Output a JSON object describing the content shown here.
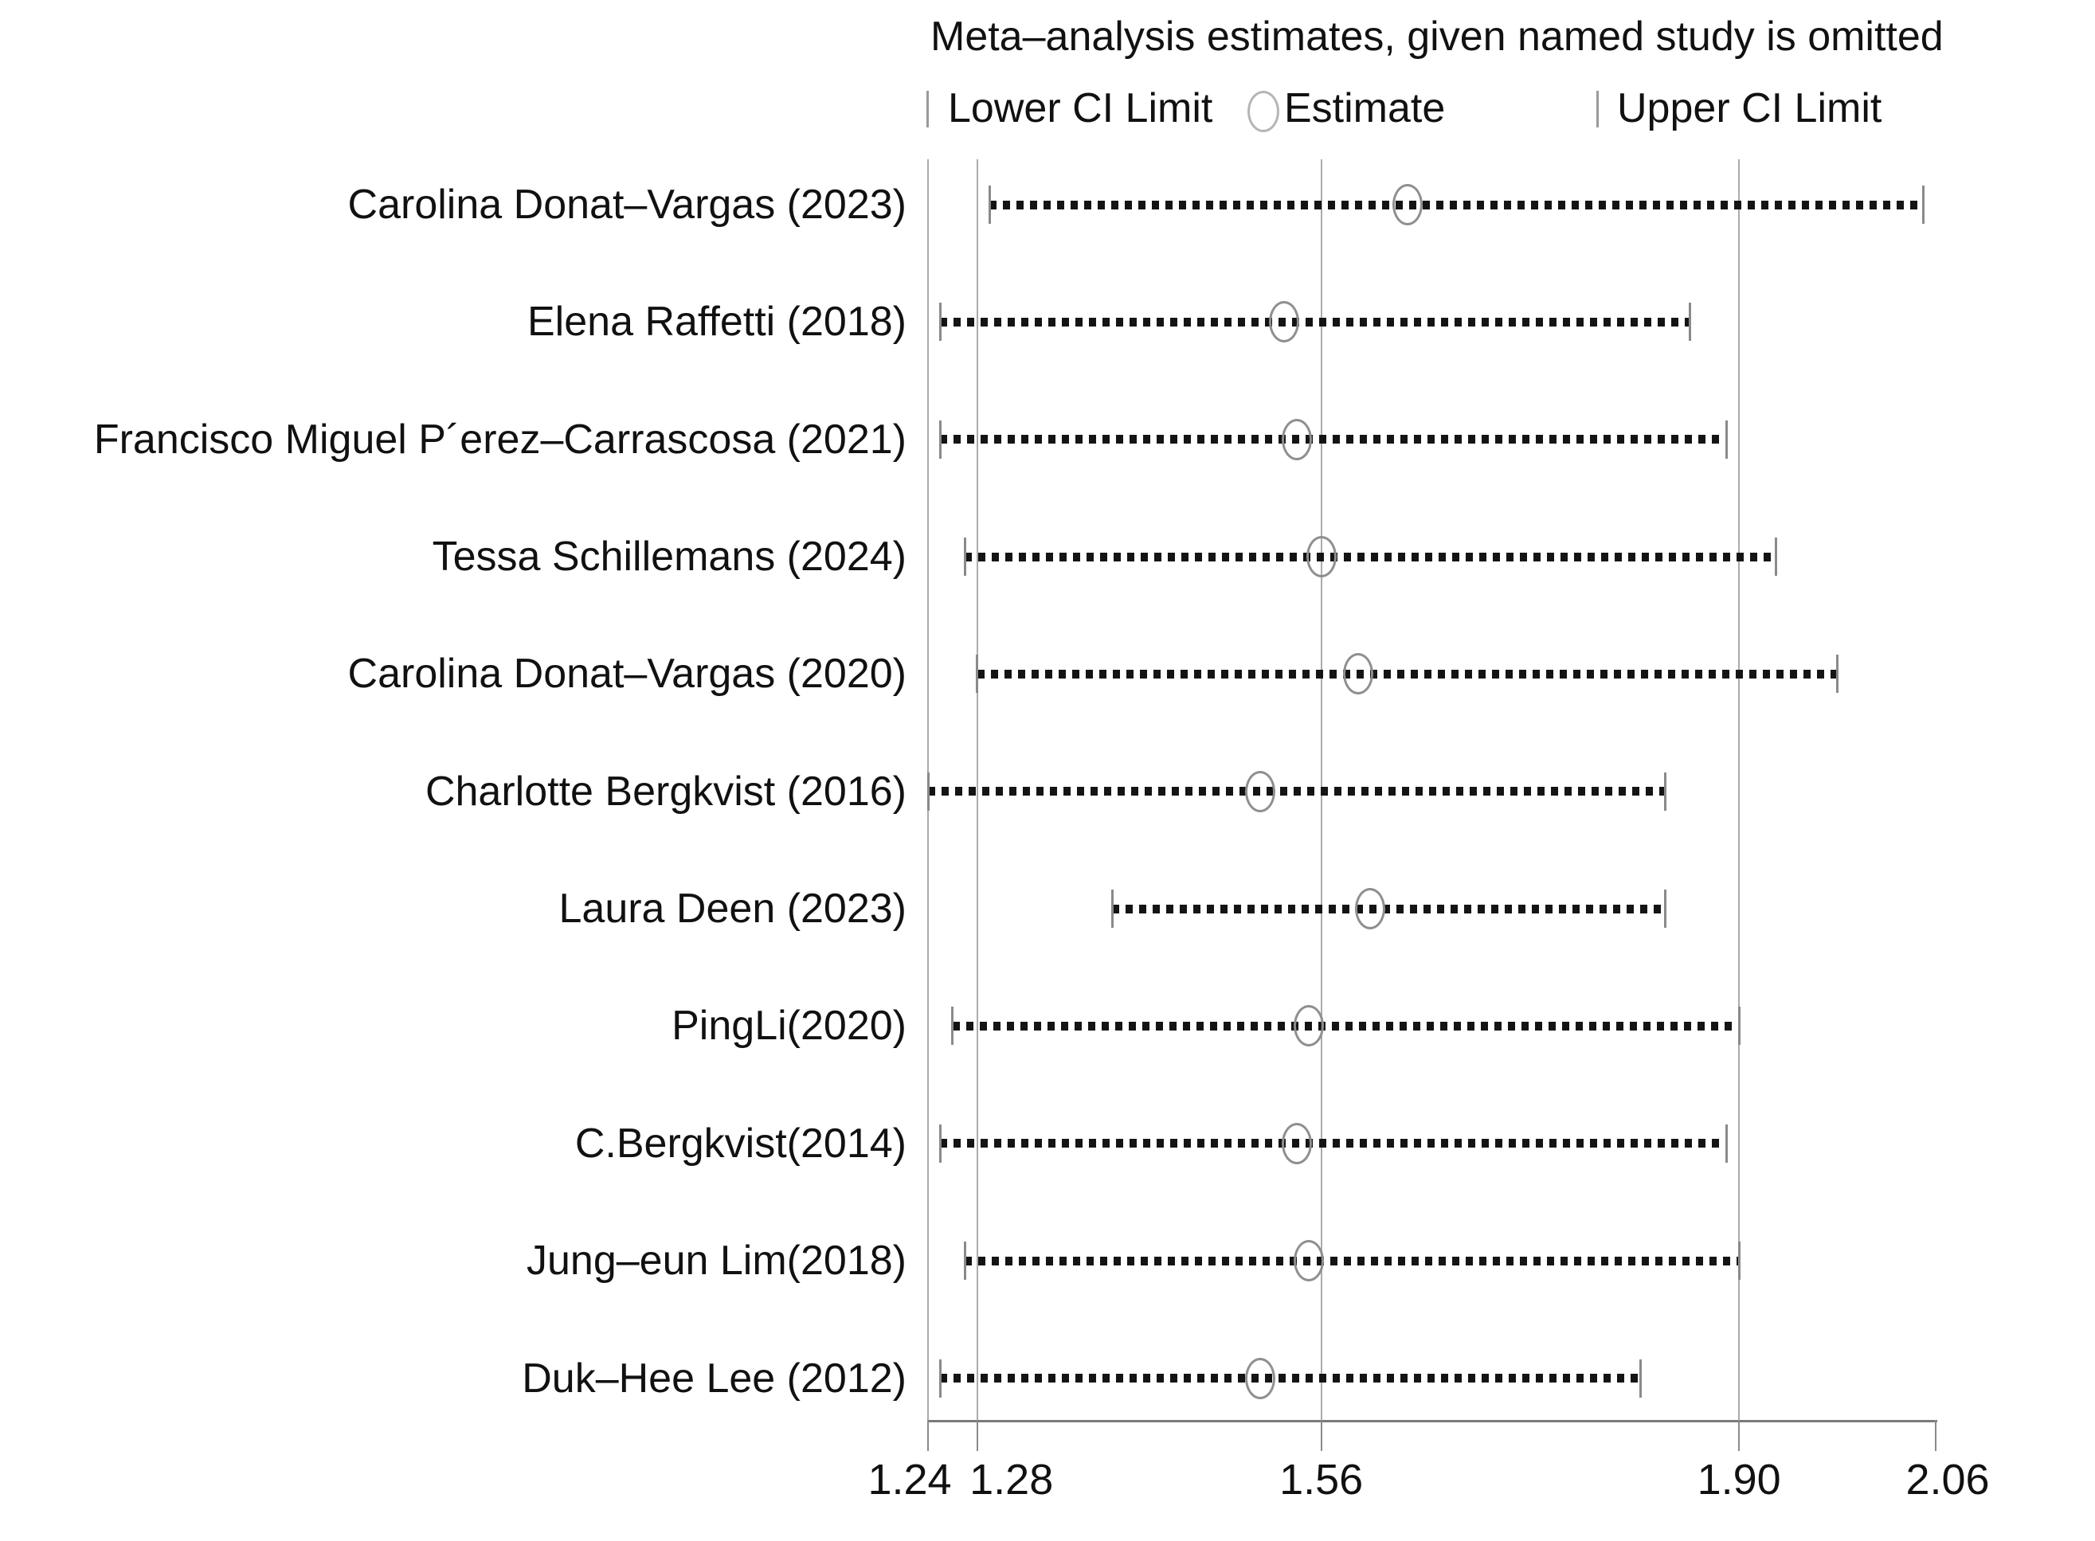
{
  "title": "Meta–analysis estimates, given named study is omitted",
  "legend": {
    "lower_label": "Lower CI Limit",
    "estimate_label": "Estimate",
    "upper_label": "Upper CI Limit",
    "lower_marker": "vertical-bar",
    "estimate_marker": "open-circle",
    "upper_marker": "vertical-bar"
  },
  "colors": {
    "background": "#ffffff",
    "text": "#111111",
    "gridline": "#ababab",
    "axis_line": "#7a7a7a",
    "ci_dots": "#141414",
    "ci_caps": "#8a8a8a",
    "estimate_circle": "#8f8f8f"
  },
  "chart_data": {
    "type": "scatter",
    "subtype": "leave-one-out-sensitivity-ci-plot",
    "title": "Meta–analysis estimates, given named study is omitted",
    "xlabel": "",
    "ylabel": "",
    "x_axis": {
      "range": [
        1.24,
        2.06
      ],
      "tick_values": [
        1.24,
        1.28,
        1.56,
        1.9,
        2.06
      ],
      "tick_labels": [
        "1.24",
        "1.28",
        "1.56",
        "1.90",
        "2.06"
      ],
      "gridlines_at": [
        1.24,
        1.28,
        1.56,
        1.9
      ],
      "grid": true
    },
    "overall": {
      "lower_ci": 1.28,
      "estimate": 1.56,
      "upper_ci": 1.9
    },
    "studies": [
      {
        "label": "Carolina Donat–Vargas (2023)",
        "lower": 1.29,
        "estimate": 1.63,
        "upper": 2.05
      },
      {
        "label": "Elena Raffetti (2018)",
        "lower": 1.25,
        "estimate": 1.53,
        "upper": 1.86
      },
      {
        "label": "Francisco Miguel P´erez–Carrascosa (2021)",
        "lower": 1.25,
        "estimate": 1.54,
        "upper": 1.89
      },
      {
        "label": "Tessa Schillemans (2024)",
        "lower": 1.27,
        "estimate": 1.56,
        "upper": 1.93
      },
      {
        "label": "Carolina Donat–Vargas (2020)",
        "lower": 1.28,
        "estimate": 1.59,
        "upper": 1.98
      },
      {
        "label": "Charlotte Bergkvist (2016)",
        "lower": 1.24,
        "estimate": 1.51,
        "upper": 1.84
      },
      {
        "label": "Laura Deen (2023)",
        "lower": 1.39,
        "estimate": 1.6,
        "upper": 1.84
      },
      {
        "label": "PingLi(2020)",
        "lower": 1.26,
        "estimate": 1.55,
        "upper": 1.9
      },
      {
        "label": "C.Bergkvist(2014)",
        "lower": 1.25,
        "estimate": 1.54,
        "upper": 1.89
      },
      {
        "label": "Jung–eun Lim(2018)",
        "lower": 1.27,
        "estimate": 1.55,
        "upper": 1.9
      },
      {
        "label": "Duk–Hee Lee (2012)",
        "lower": 1.25,
        "estimate": 1.51,
        "upper": 1.82
      }
    ]
  }
}
